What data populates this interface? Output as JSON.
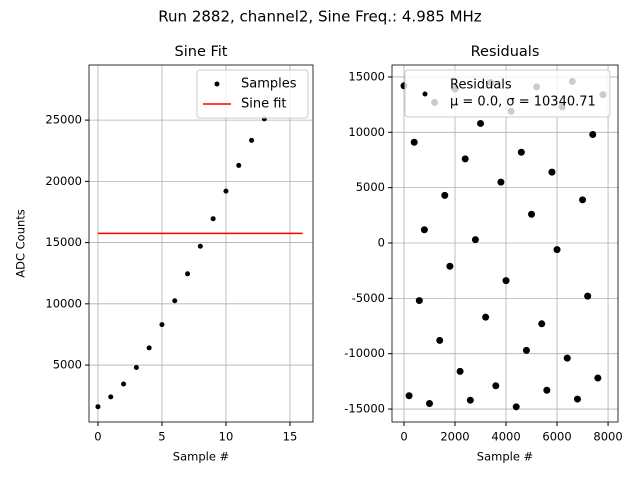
{
  "title": "Run 2882, channel2, Sine Freq.: 4.985 MHz",
  "chart_data": [
    {
      "type": "line",
      "title": "Sine Fit",
      "x_label": "Sample #",
      "y_label": "ADC Counts",
      "xlim": [
        -0.7,
        16.8
      ],
      "ylim": [
        350,
        29500
      ],
      "xticks": [
        0,
        5,
        10,
        15
      ],
      "yticks": [
        5000,
        10000,
        15000,
        20000,
        25000
      ],
      "grid": true,
      "legend": "upper right",
      "series": [
        {
          "name": "Samples",
          "color": "#000000",
          "style": "points",
          "x": [
            0,
            1,
            2,
            3,
            4,
            5,
            6,
            7,
            8,
            9,
            10,
            11,
            12,
            13
          ],
          "values": [
            1600,
            2400,
            3450,
            4800,
            6400,
            8300,
            10250,
            12450,
            14700,
            16950,
            19200,
            21300,
            23350,
            25100
          ]
        },
        {
          "name": "Sine fit",
          "color": "#ff0000",
          "style": "line",
          "x": [
            0,
            16
          ],
          "values": [
            15750,
            15750
          ]
        }
      ]
    },
    {
      "type": "scatter",
      "title": "Residuals",
      "x_label": "Sample #",
      "xlim": [
        -470,
        8390
      ],
      "ylim": [
        -16170,
        16080
      ],
      "xticks": [
        0,
        2000,
        4000,
        6000,
        8000
      ],
      "yticks": [
        -15000,
        -10000,
        -5000,
        0,
        5000,
        10000,
        15000
      ],
      "grid": true,
      "legend": "upper center",
      "series": [
        {
          "name": "Residuals",
          "legend_note": "μ = 0.0, σ = 10340.71",
          "color": "#000000",
          "style": "points",
          "x": [
            0,
            200,
            400,
            600,
            800,
            1000,
            1200,
            1400,
            1600,
            1800,
            2000,
            2200,
            2400,
            2600,
            2800,
            3000,
            3200,
            3400,
            3600,
            3800,
            4000,
            4200,
            4400,
            4600,
            4800,
            5000,
            5200,
            5400,
            5600,
            5800,
            6000,
            6200,
            6400,
            6600,
            6800,
            7000,
            7200,
            7400,
            7600,
            7800
          ],
          "values": [
            14200,
            -13800,
            9100,
            -5200,
            1200,
            -14500,
            12700,
            -8800,
            4300,
            -2100,
            13900,
            -11600,
            7600,
            -14200,
            300,
            10800,
            -6700,
            14500,
            -12900,
            5500,
            -3400,
            11900,
            -14800,
            8200,
            -9700,
            2600,
            14100,
            -7300,
            -13300,
            6400,
            -600,
            12300,
            -10400,
            14600,
            -14100,
            3900,
            -4800,
            9800,
            -12200,
            13400
          ]
        }
      ]
    }
  ]
}
